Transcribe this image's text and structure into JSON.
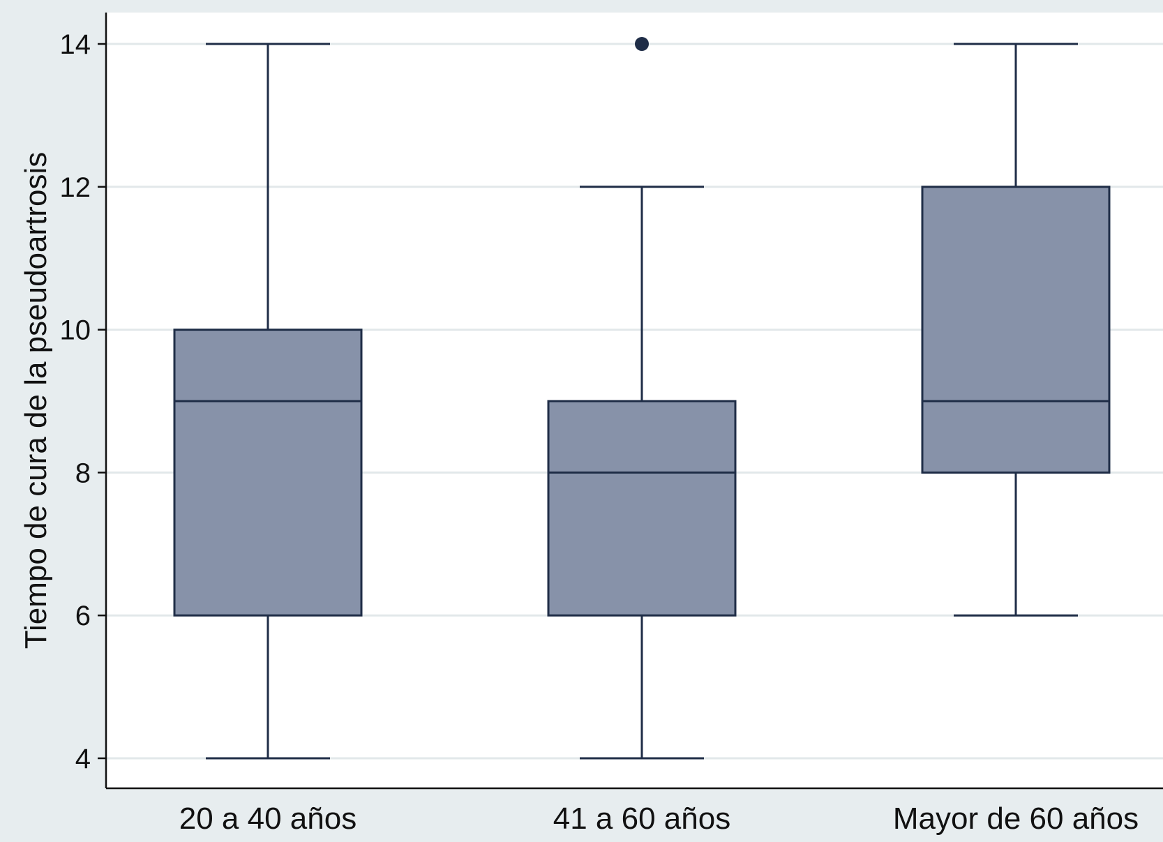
{
  "colors": {
    "background": "#e7edef",
    "plot_background": "#ffffff",
    "box_fill": "#8792a9",
    "box_stroke": "#1f2d47",
    "gridline": "#e2e8ea",
    "axis": "#111111"
  },
  "chart_data": {
    "type": "boxplot",
    "title": "",
    "xlabel": "",
    "ylabel": "Tiempo de cura de la pseudoartrosis",
    "ylim": [
      3.6,
      14.45
    ],
    "yticks": [
      4,
      6,
      8,
      10,
      12,
      14
    ],
    "yticks_labels": [
      "4",
      "6",
      "8",
      "10",
      "12",
      "14"
    ],
    "grid": true,
    "categories": [
      "20 a 40 años",
      "41 a 60 años",
      "Mayor de 60 años"
    ],
    "boxes": [
      {
        "whisker_low": 4,
        "q1": 6,
        "median": 9,
        "q3": 10,
        "whisker_high": 14,
        "outliers": []
      },
      {
        "whisker_low": 4,
        "q1": 6,
        "median": 8,
        "q3": 9,
        "whisker_high": 12,
        "outliers": [
          14
        ]
      },
      {
        "whisker_low": 6,
        "q1": 8,
        "median": 9,
        "q3": 12,
        "whisker_high": 14,
        "outliers": []
      }
    ]
  }
}
